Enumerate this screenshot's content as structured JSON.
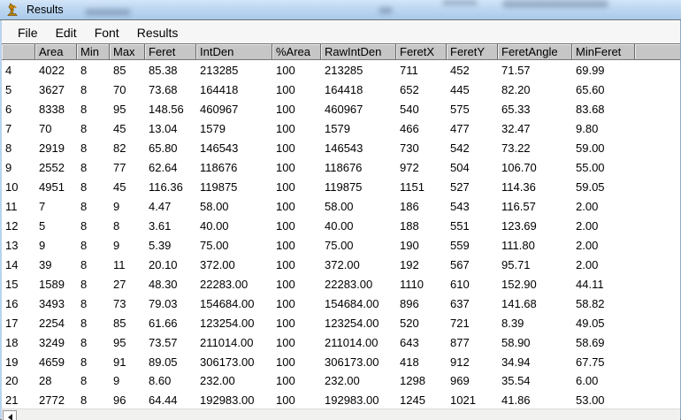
{
  "window": {
    "title": "Results",
    "icon": "imagej-microscope-icon"
  },
  "menu": {
    "items": [
      "File",
      "Edit",
      "Font",
      "Results"
    ]
  },
  "table": {
    "columns": [
      "",
      "Area",
      "Min",
      "Max",
      "Feret",
      "IntDen",
      "%Area",
      "RawIntDen",
      "FeretX",
      "FeretY",
      "FeretAngle",
      "MinFeret",
      ""
    ],
    "rows": [
      [
        "4",
        "4022",
        "8",
        "85",
        "85.38",
        "213285",
        "100",
        "213285",
        "711",
        "452",
        "71.57",
        "69.99"
      ],
      [
        "5",
        "3627",
        "8",
        "70",
        "73.68",
        "164418",
        "100",
        "164418",
        "652",
        "445",
        "82.20",
        "65.60"
      ],
      [
        "6",
        "8338",
        "8",
        "95",
        "148.56",
        "460967",
        "100",
        "460967",
        "540",
        "575",
        "65.33",
        "83.68"
      ],
      [
        "7",
        "70",
        "8",
        "45",
        "13.04",
        "1579",
        "100",
        "1579",
        "466",
        "477",
        "32.47",
        "9.80"
      ],
      [
        "8",
        "2919",
        "8",
        "82",
        "65.80",
        "146543",
        "100",
        "146543",
        "730",
        "542",
        "73.22",
        "59.00"
      ],
      [
        "9",
        "2552",
        "8",
        "77",
        "62.64",
        "118676",
        "100",
        "118676",
        "972",
        "504",
        "106.70",
        "55.00"
      ],
      [
        "10",
        "4951",
        "8",
        "45",
        "116.36",
        "119875",
        "100",
        "119875",
        "1151",
        "527",
        "114.36",
        "59.05"
      ],
      [
        "11",
        "7",
        "8",
        "9",
        "4.47",
        "58.00",
        "100",
        "58.00",
        "186",
        "543",
        "116.57",
        "2.00"
      ],
      [
        "12",
        "5",
        "8",
        "8",
        "3.61",
        "40.00",
        "100",
        "40.00",
        "188",
        "551",
        "123.69",
        "2.00"
      ],
      [
        "13",
        "9",
        "8",
        "9",
        "5.39",
        "75.00",
        "100",
        "75.00",
        "190",
        "559",
        "111.80",
        "2.00"
      ],
      [
        "14",
        "39",
        "8",
        "11",
        "20.10",
        "372.00",
        "100",
        "372.00",
        "192",
        "567",
        "95.71",
        "2.00"
      ],
      [
        "15",
        "1589",
        "8",
        "27",
        "48.30",
        "22283.00",
        "100",
        "22283.00",
        "1110",
        "610",
        "152.90",
        "44.11"
      ],
      [
        "16",
        "3493",
        "8",
        "73",
        "79.03",
        "154684.00",
        "100",
        "154684.00",
        "896",
        "637",
        "141.68",
        "58.82"
      ],
      [
        "17",
        "2254",
        "8",
        "85",
        "61.66",
        "123254.00",
        "100",
        "123254.00",
        "520",
        "721",
        "8.39",
        "49.05"
      ],
      [
        "18",
        "3249",
        "8",
        "95",
        "73.57",
        "211014.00",
        "100",
        "211014.00",
        "643",
        "877",
        "58.90",
        "58.69"
      ],
      [
        "19",
        "4659",
        "8",
        "91",
        "89.05",
        "306173.00",
        "100",
        "306173.00",
        "418",
        "912",
        "34.94",
        "67.75"
      ],
      [
        "20",
        "28",
        "8",
        "9",
        "8.60",
        "232.00",
        "100",
        "232.00",
        "1298",
        "969",
        "35.54",
        "6.00"
      ],
      [
        "21",
        "2772",
        "8",
        "96",
        "64.44",
        "192983.00",
        "100",
        "192983.00",
        "1245",
        "1021",
        "41.86",
        "53.00"
      ]
    ]
  },
  "scrollbar": {
    "orientation": "horizontal",
    "left_arrow_icon": "scroll-left-arrow-icon"
  },
  "colors": {
    "titlebar": "#bdd7f1",
    "header_bg": "#c6c6c6",
    "body_bg": "#ffffff",
    "menubar_bg": "#f6f6f6",
    "text": "#000000",
    "icon_accent": "#c8860a"
  }
}
